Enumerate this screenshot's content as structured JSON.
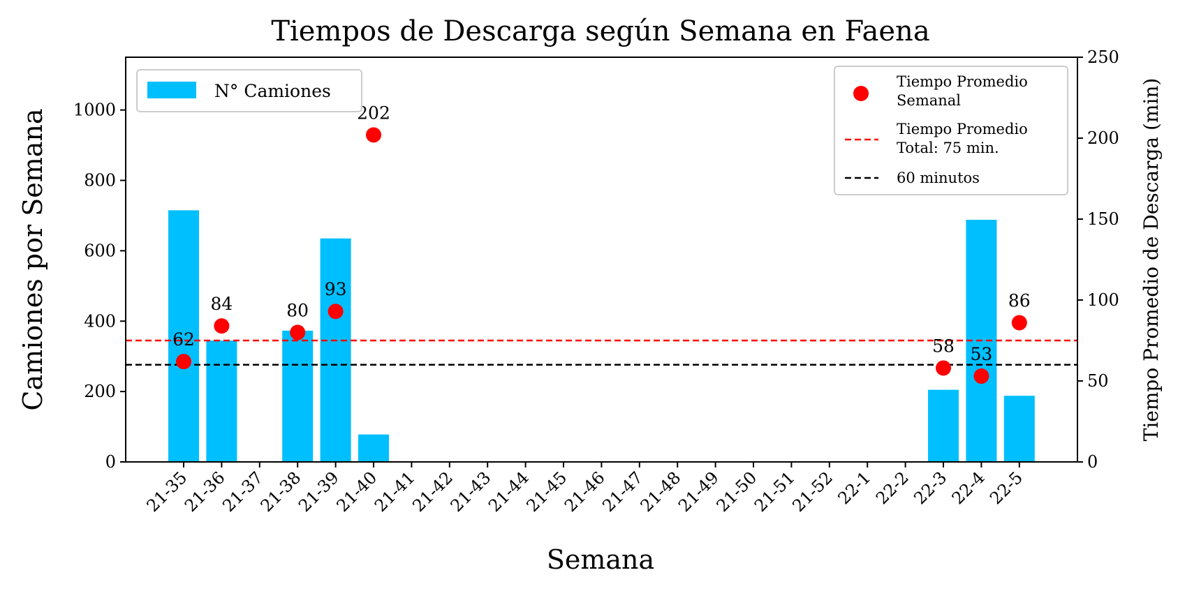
{
  "chart_data": {
    "type": "bar",
    "title": "Tiempos de Descarga según Semana en Faena",
    "xlabel": "Semana",
    "ylabel_left": "Camiones por Semana",
    "ylabel_right": "Tiempo Promedio de Descarga (min)",
    "categories": [
      "21-35",
      "21-36",
      "21-37",
      "21-38",
      "21-39",
      "21-40",
      "21-41",
      "21-42",
      "21-43",
      "21-44",
      "21-45",
      "21-46",
      "21-47",
      "21-48",
      "21-49",
      "21-50",
      "21-51",
      "21-52",
      "22-1",
      "22-2",
      "22-3",
      "22-4",
      "22-5"
    ],
    "ylim_left": [
      0,
      1150
    ],
    "ylim_right": [
      0,
      250
    ],
    "yticks_left": [
      0,
      200,
      400,
      600,
      800,
      1000
    ],
    "yticks_right": [
      0,
      50,
      100,
      150,
      200,
      250
    ],
    "grid": false,
    "series": [
      {
        "name": "N° Camiones",
        "kind": "bar",
        "axis": "left",
        "color": "#00bfff",
        "values": [
          715,
          345,
          0,
          373,
          635,
          78,
          0,
          0,
          0,
          0,
          0,
          0,
          0,
          0,
          0,
          0,
          0,
          0,
          0,
          0,
          205,
          688,
          188
        ]
      },
      {
        "name": "Tiempo Promedio Semanal",
        "kind": "scatter",
        "axis": "right",
        "color": "#ff0000",
        "values": [
          62,
          84,
          null,
          80,
          93,
          202,
          null,
          null,
          null,
          null,
          null,
          null,
          null,
          null,
          null,
          null,
          null,
          null,
          null,
          null,
          58,
          53,
          86
        ],
        "labels": [
          "62",
          "84",
          "",
          "80",
          "93",
          "202",
          "",
          "",
          "",
          "",
          "",
          "",
          "",
          "",
          "",
          "",
          "",
          "",
          "",
          "",
          "58",
          "53",
          "86"
        ]
      }
    ],
    "reference_lines": [
      {
        "name": "Tiempo Promedio Total: 75 min.",
        "axis": "right",
        "value": 75,
        "color": "#ff0000",
        "style": "dashed"
      },
      {
        "name": "60 minutos",
        "axis": "right",
        "value": 60,
        "color": "#000000",
        "style": "dashed"
      }
    ],
    "legend_left": {
      "placement": "top-left",
      "entries": [
        "N° Camiones"
      ]
    },
    "legend_right": {
      "placement": "top-right",
      "entries": [
        [
          "Tiempo Promedio",
          "Semanal"
        ],
        [
          "Tiempo Promedio",
          "Total: 75 min."
        ],
        [
          "60 minutos"
        ]
      ]
    }
  }
}
